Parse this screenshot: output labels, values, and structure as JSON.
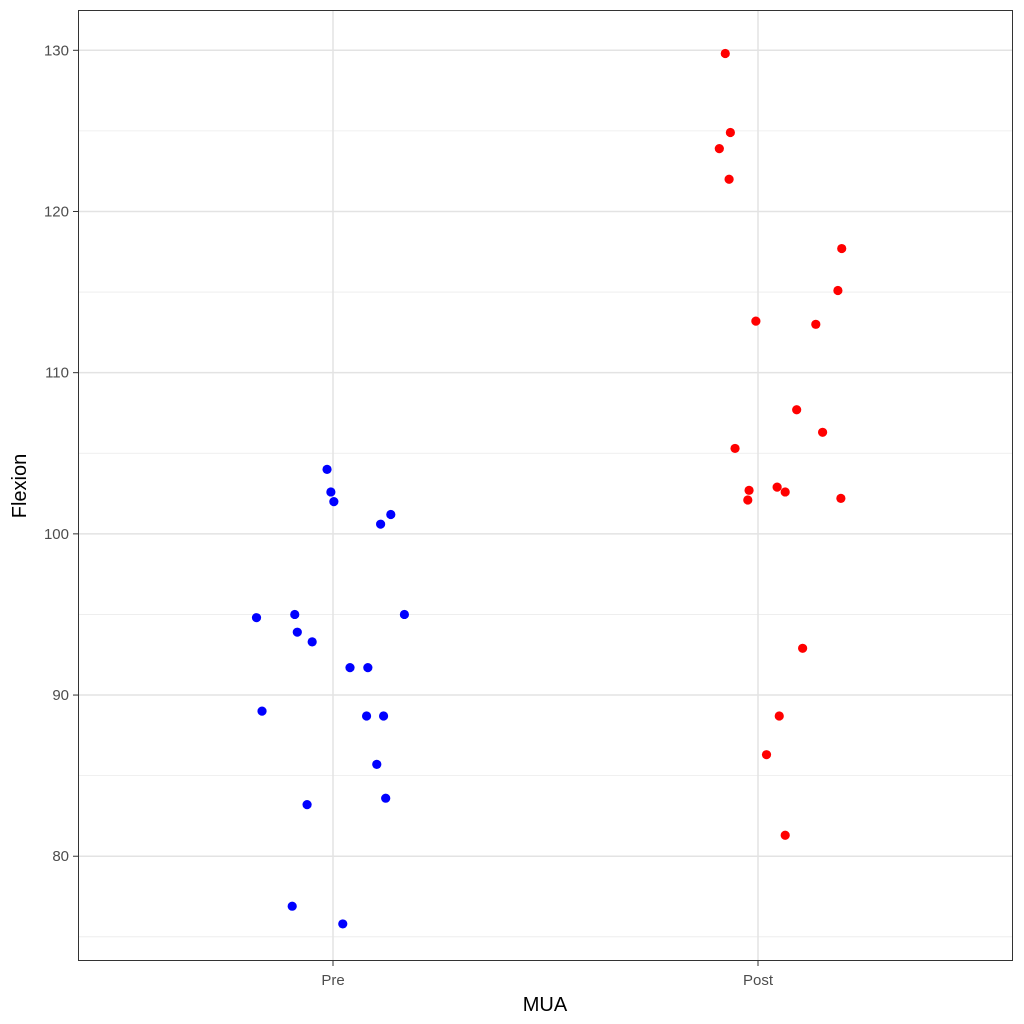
{
  "chart_data": {
    "type": "scatter",
    "xlabel": "MUA",
    "ylabel": "Flexion",
    "categories": [
      "Pre",
      "Post"
    ],
    "ylim": [
      73.5,
      132.5
    ],
    "y_ticks": [
      80,
      90,
      100,
      110,
      120,
      130
    ],
    "y_tick_labels": [
      "80",
      "90",
      "100",
      "110",
      "120",
      "130"
    ],
    "grid": true,
    "legend": "none",
    "series": [
      {
        "category": "Pre",
        "color": "#0000ff",
        "points": [
          {
            "x": -0.18,
            "y": 94.8
          },
          {
            "x": -0.167,
            "y": 89.0
          },
          {
            "x": -0.09,
            "y": 95.0
          },
          {
            "x": -0.084,
            "y": 93.9
          },
          {
            "x": -0.096,
            "y": 76.9
          },
          {
            "x": -0.061,
            "y": 83.2
          },
          {
            "x": -0.049,
            "y": 93.3
          },
          {
            "x": -0.014,
            "y": 104.0
          },
          {
            "x": -0.005,
            "y": 102.6
          },
          {
            "x": 0.002,
            "y": 102.0
          },
          {
            "x": 0.023,
            "y": 75.8
          },
          {
            "x": 0.04,
            "y": 91.7
          },
          {
            "x": 0.082,
            "y": 91.7
          },
          {
            "x": 0.079,
            "y": 88.7
          },
          {
            "x": 0.103,
            "y": 85.7
          },
          {
            "x": 0.112,
            "y": 100.6
          },
          {
            "x": 0.119,
            "y": 88.7
          },
          {
            "x": 0.124,
            "y": 83.6
          },
          {
            "x": 0.136,
            "y": 101.2
          },
          {
            "x": 0.168,
            "y": 95.0
          }
        ]
      },
      {
        "category": "Post",
        "color": "#ff0000",
        "points": [
          {
            "x": -0.077,
            "y": 129.8
          },
          {
            "x": -0.065,
            "y": 124.9
          },
          {
            "x": -0.091,
            "y": 123.9
          },
          {
            "x": -0.068,
            "y": 122.0
          },
          {
            "x": -0.054,
            "y": 105.3
          },
          {
            "x": -0.021,
            "y": 102.7
          },
          {
            "x": -0.024,
            "y": 102.1
          },
          {
            "x": -0.005,
            "y": 113.2
          },
          {
            "x": 0.02,
            "y": 86.3
          },
          {
            "x": 0.045,
            "y": 102.9
          },
          {
            "x": 0.05,
            "y": 88.7
          },
          {
            "x": 0.064,
            "y": 102.6
          },
          {
            "x": 0.064,
            "y": 81.3
          },
          {
            "x": 0.091,
            "y": 107.7
          },
          {
            "x": 0.105,
            "y": 92.9
          },
          {
            "x": 0.136,
            "y": 113.0
          },
          {
            "x": 0.152,
            "y": 106.3
          },
          {
            "x": 0.188,
            "y": 115.1
          },
          {
            "x": 0.197,
            "y": 117.7
          },
          {
            "x": 0.195,
            "y": 102.2
          }
        ]
      }
    ]
  }
}
